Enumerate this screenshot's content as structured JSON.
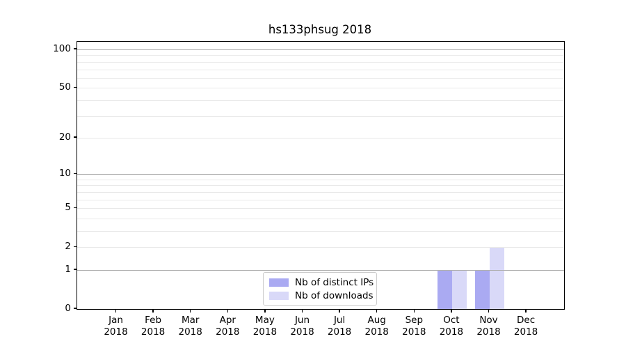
{
  "title": "hs133phsug 2018",
  "chart_data": {
    "type": "bar",
    "title": "hs133phsug 2018",
    "x_axis": {
      "months": [
        "Jan",
        "Feb",
        "Mar",
        "Apr",
        "May",
        "Jun",
        "Jul",
        "Aug",
        "Sep",
        "Oct",
        "Nov",
        "Dec"
      ],
      "year": "2018"
    },
    "series": [
      {
        "name": "Nb of distinct IPs",
        "color": "#aaaaf2",
        "values": [
          0,
          0,
          0,
          0,
          0,
          0,
          0,
          0,
          0,
          1,
          1,
          0
        ]
      },
      {
        "name": "Nb of downloads",
        "color": "#d9d9f8",
        "values": [
          0,
          0,
          0,
          0,
          0,
          0,
          0,
          0,
          0,
          1,
          2,
          0
        ]
      }
    ],
    "y_axis": {
      "scale": "log1p",
      "tick_values": [
        0,
        1,
        2,
        5,
        10,
        20,
        50,
        100
      ],
      "major_gridlines": [
        1,
        10,
        100
      ],
      "minor_gridlines": [
        2,
        3,
        4,
        5,
        6,
        7,
        8,
        9,
        20,
        30,
        40,
        50,
        60,
        70,
        80,
        90
      ],
      "ylim": [
        0,
        115
      ]
    },
    "legend": {
      "position": "lower center",
      "entries": [
        "Nb of distinct IPs",
        "Nb of downloads"
      ]
    },
    "colors": {
      "major_grid": "#b0b0b0",
      "minor_grid": "#e9e9e9",
      "axis": "#000000",
      "background": "#ffffff"
    }
  }
}
